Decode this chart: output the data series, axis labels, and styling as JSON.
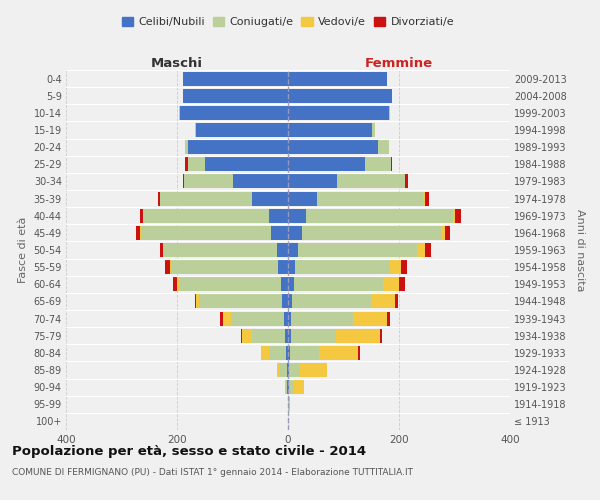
{
  "age_groups": [
    "100+",
    "95-99",
    "90-94",
    "85-89",
    "80-84",
    "75-79",
    "70-74",
    "65-69",
    "60-64",
    "55-59",
    "50-54",
    "45-49",
    "40-44",
    "35-39",
    "30-34",
    "25-29",
    "20-24",
    "15-19",
    "10-14",
    "5-9",
    "0-4"
  ],
  "birth_years": [
    "≤ 1913",
    "1914-1918",
    "1919-1923",
    "1924-1928",
    "1929-1933",
    "1934-1938",
    "1939-1943",
    "1944-1948",
    "1949-1953",
    "1954-1958",
    "1959-1963",
    "1964-1968",
    "1969-1973",
    "1974-1978",
    "1979-1983",
    "1984-1988",
    "1989-1993",
    "1994-1998",
    "1999-2003",
    "2004-2008",
    "2009-2013"
  ],
  "males": {
    "celibe": [
      0,
      0,
      1,
      2,
      3,
      5,
      8,
      10,
      12,
      18,
      20,
      30,
      35,
      65,
      100,
      150,
      180,
      165,
      195,
      190,
      190
    ],
    "coniugato": [
      0,
      0,
      3,
      12,
      32,
      60,
      95,
      150,
      185,
      192,
      205,
      235,
      225,
      165,
      88,
      30,
      5,
      2,
      1,
      0,
      0
    ],
    "vedovo": [
      0,
      0,
      1,
      5,
      14,
      18,
      14,
      5,
      3,
      2,
      1,
      1,
      1,
      0,
      0,
      0,
      0,
      0,
      0,
      0,
      0
    ],
    "divorziato": [
      0,
      0,
      0,
      0,
      0,
      2,
      5,
      2,
      8,
      10,
      5,
      8,
      5,
      5,
      2,
      5,
      0,
      0,
      0,
      0,
      0
    ]
  },
  "females": {
    "nubile": [
      0,
      0,
      1,
      2,
      3,
      5,
      5,
      8,
      10,
      12,
      18,
      25,
      33,
      52,
      88,
      138,
      162,
      152,
      182,
      188,
      178
    ],
    "coniugata": [
      0,
      2,
      8,
      20,
      52,
      82,
      112,
      142,
      162,
      172,
      215,
      250,
      265,
      192,
      122,
      48,
      20,
      5,
      2,
      0,
      0
    ],
    "vedova": [
      0,
      2,
      20,
      48,
      72,
      78,
      62,
      43,
      28,
      20,
      14,
      7,
      3,
      2,
      1,
      0,
      0,
      0,
      0,
      0,
      0
    ],
    "divorziata": [
      0,
      0,
      0,
      0,
      3,
      5,
      5,
      5,
      10,
      10,
      10,
      10,
      10,
      8,
      5,
      2,
      0,
      0,
      0,
      0,
      0
    ]
  },
  "colors": {
    "celibe": "#4472C4",
    "coniugato": "#BBCF9A",
    "vedovo": "#F5C842",
    "divorziato": "#CC1111"
  },
  "title": "Popolazione per età, sesso e stato civile - 2014",
  "subtitle": "COMUNE DI FERMIGNANO (PU) - Dati ISTAT 1° gennaio 2014 - Elaborazione TUTTITALIA.IT",
  "xlabel_left": "Maschi",
  "xlabel_right": "Femmine",
  "ylabel_left": "Fasce di età",
  "ylabel_right": "Anni di nascita",
  "xlim": 400,
  "bg_color": "#f0f0f0",
  "plot_bg_color": "#f0f0f0",
  "grid_color": "#cccccc",
  "legend_labels": [
    "Celibi/Nubili",
    "Coniugati/e",
    "Vedovi/e",
    "Divorziati/e"
  ]
}
